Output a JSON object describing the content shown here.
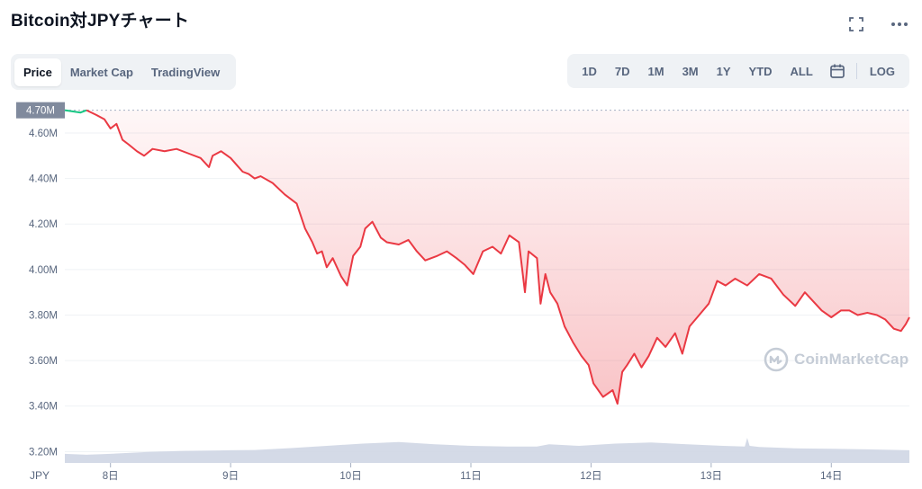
{
  "header": {
    "title": "Bitcoin対JPYチャート"
  },
  "icons": {
    "expand": "expand-icon",
    "more": "more-icon",
    "calendar": "calendar-icon",
    "logo": "coinmarketcap-logo-icon"
  },
  "tabs": [
    {
      "label": "Price",
      "active": true
    },
    {
      "label": "Market Cap",
      "active": false
    },
    {
      "label": "TradingView",
      "active": false
    }
  ],
  "ranges": [
    "1D",
    "7D",
    "1M",
    "3M",
    "1Y",
    "YTD",
    "ALL"
  ],
  "log_label": "LOG",
  "watermark": "CoinMarketCap",
  "colors": {
    "down": "#ea3943",
    "up": "#16c784",
    "volume": "#cfd6e4",
    "grid": "#eff2f5",
    "badge": "#808a9d"
  },
  "chart_data": {
    "type": "line",
    "currency": "JPY",
    "current_price_label": "4.70M",
    "open_price": 4.7,
    "y_unit": "M",
    "ylim": [
      3.15,
      4.75
    ],
    "y_ticks": [
      3.2,
      3.4,
      3.6,
      3.8,
      4.0,
      4.2,
      4.4,
      4.6
    ],
    "y_tick_labels": [
      "3.20M",
      "3.40M",
      "3.60M",
      "3.80M",
      "4.00M",
      "4.20M",
      "4.40M",
      "4.60M"
    ],
    "x_ticks": [
      8,
      9,
      10,
      11,
      12,
      13,
      14
    ],
    "x_tick_labels": [
      "8日",
      "9日",
      "10日",
      "11日",
      "12日",
      "13日",
      "14日"
    ],
    "xlim": [
      7.62,
      14.65
    ],
    "series": [
      {
        "x": [
          7.62,
          7.75,
          7.8,
          7.88,
          7.95,
          8.0,
          8.05,
          8.1,
          8.15,
          8.22,
          8.28,
          8.35,
          8.45,
          8.55,
          8.65,
          8.75,
          8.82,
          8.85,
          8.92,
          9.0,
          9.05,
          9.1,
          9.15,
          9.2,
          9.25,
          9.35,
          9.45,
          9.55,
          9.62,
          9.68,
          9.72,
          9.76,
          9.8,
          9.85,
          9.92,
          9.97,
          10.02,
          10.08,
          10.12,
          10.18,
          10.25,
          10.3,
          10.4,
          10.48,
          10.55,
          10.62,
          10.72,
          10.8,
          10.88,
          10.95,
          11.02,
          11.1,
          11.18,
          11.25,
          11.32,
          11.4,
          11.45,
          11.48,
          11.55,
          11.58,
          11.62,
          11.66,
          11.72,
          11.78,
          11.85,
          11.92,
          11.98,
          12.02,
          12.1,
          12.18,
          12.22,
          12.26,
          12.3,
          12.36,
          12.42,
          12.48,
          12.55,
          12.62,
          12.7,
          12.76,
          12.82,
          12.9,
          12.98,
          13.05,
          13.12,
          13.2,
          13.3,
          13.4,
          13.5,
          13.6,
          13.7,
          13.78,
          13.85,
          13.92,
          14.0,
          14.08,
          14.15,
          14.22,
          14.3,
          14.38,
          14.45,
          14.52,
          14.58,
          14.62,
          14.65
        ],
        "y": [
          4.7,
          4.69,
          4.7,
          4.68,
          4.66,
          4.62,
          4.64,
          4.57,
          4.55,
          4.52,
          4.5,
          4.53,
          4.52,
          4.53,
          4.51,
          4.49,
          4.45,
          4.5,
          4.52,
          4.49,
          4.46,
          4.43,
          4.42,
          4.4,
          4.41,
          4.38,
          4.33,
          4.29,
          4.18,
          4.12,
          4.07,
          4.08,
          4.01,
          4.05,
          3.97,
          3.93,
          4.06,
          4.1,
          4.18,
          4.21,
          4.14,
          4.12,
          4.11,
          4.13,
          4.08,
          4.04,
          4.06,
          4.08,
          4.05,
          4.02,
          3.98,
          4.08,
          4.1,
          4.07,
          4.15,
          4.12,
          3.9,
          4.08,
          4.05,
          3.85,
          3.98,
          3.9,
          3.85,
          3.75,
          3.68,
          3.62,
          3.58,
          3.5,
          3.44,
          3.47,
          3.41,
          3.55,
          3.58,
          3.63,
          3.57,
          3.62,
          3.7,
          3.66,
          3.72,
          3.63,
          3.75,
          3.8,
          3.85,
          3.95,
          3.93,
          3.96,
          3.93,
          3.98,
          3.96,
          3.89,
          3.84,
          3.9,
          3.86,
          3.82,
          3.79,
          3.82,
          3.82,
          3.8,
          3.81,
          3.8,
          3.78,
          3.74,
          3.73,
          3.76,
          3.79
        ]
      }
    ],
    "volume": {
      "x": [
        7.62,
        7.8,
        8.0,
        8.3,
        8.6,
        8.9,
        9.2,
        9.5,
        9.8,
        10.1,
        10.4,
        10.7,
        11.0,
        11.3,
        11.55,
        11.65,
        11.9,
        12.2,
        12.5,
        12.8,
        13.1,
        13.28,
        13.3,
        13.32,
        13.4,
        13.7,
        14.0,
        14.3,
        14.65
      ],
      "y": [
        3.19,
        3.186,
        3.19,
        3.198,
        3.203,
        3.205,
        3.207,
        3.215,
        3.225,
        3.235,
        3.242,
        3.232,
        3.225,
        3.222,
        3.222,
        3.232,
        3.225,
        3.235,
        3.24,
        3.232,
        3.225,
        3.222,
        3.26,
        3.225,
        3.22,
        3.214,
        3.212,
        3.21,
        3.206
      ]
    },
    "grid": true
  }
}
